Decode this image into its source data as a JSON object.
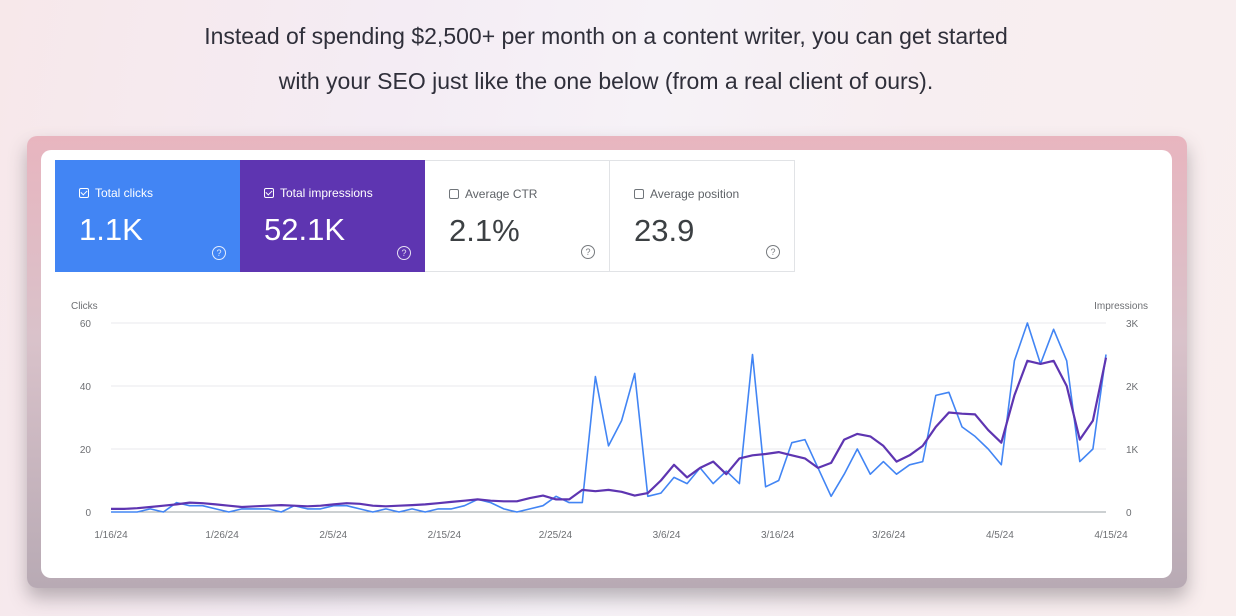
{
  "intro": {
    "line1": "Instead of spending $2,500+ per month on a content writer, you can get started",
    "line2": "with your SEO just like the one below (from a real client of ours)."
  },
  "metrics": [
    {
      "label": "Total clicks",
      "value": "1.1K",
      "checked": true,
      "color": "#4285f4"
    },
    {
      "label": "Total impressions",
      "value": "52.1K",
      "checked": true,
      "color": "#5e35b1"
    },
    {
      "label": "Average CTR",
      "value": "2.1%",
      "checked": false
    },
    {
      "label": "Average position",
      "value": "23.9",
      "checked": false
    }
  ],
  "chart_data": {
    "type": "line",
    "left_axis": {
      "label": "Clicks",
      "ticks": [
        "60",
        "40",
        "20",
        "0"
      ],
      "range": [
        0,
        60
      ]
    },
    "right_axis": {
      "label": "Impressions",
      "ticks": [
        "3K",
        "2K",
        "1K",
        "0"
      ],
      "range": [
        0,
        3000
      ]
    },
    "x_ticks": [
      "1/16/24",
      "1/26/24",
      "2/5/24",
      "2/15/24",
      "2/25/24",
      "3/6/24",
      "3/16/24",
      "3/26/24",
      "4/5/24",
      "4/15/24"
    ],
    "grid": true,
    "series": [
      {
        "name": "Clicks",
        "axis": "left",
        "color": "#4285f4",
        "values": [
          0,
          0,
          0,
          1,
          0,
          3,
          2,
          2,
          1,
          0,
          1,
          1,
          1,
          0,
          2,
          1,
          1,
          2,
          2,
          1,
          0,
          1,
          0,
          1,
          0,
          1,
          1,
          2,
          4,
          3,
          1,
          0,
          1,
          2,
          5,
          3,
          3,
          43,
          21,
          29,
          44,
          5,
          6,
          11,
          9,
          14,
          9,
          13,
          9,
          50,
          8,
          10,
          22,
          23,
          14,
          5,
          12,
          20,
          12,
          16,
          12,
          15,
          16,
          37,
          38,
          27,
          24,
          20,
          15,
          48,
          60,
          47,
          58,
          48,
          16,
          20,
          50
        ]
      },
      {
        "name": "Impressions",
        "axis": "right",
        "color": "#5e35b1",
        "values": [
          50,
          50,
          60,
          80,
          100,
          120,
          150,
          140,
          120,
          100,
          80,
          90,
          100,
          110,
          100,
          90,
          100,
          120,
          140,
          130,
          100,
          90,
          100,
          110,
          120,
          140,
          160,
          180,
          200,
          180,
          170,
          170,
          220,
          260,
          200,
          200,
          350,
          330,
          350,
          320,
          260,
          300,
          500,
          750,
          550,
          700,
          800,
          600,
          850,
          900,
          920,
          950,
          900,
          850,
          700,
          780,
          1150,
          1240,
          1200,
          1050,
          800,
          900,
          1050,
          1350,
          1580,
          1560,
          1550,
          1300,
          1100,
          1850,
          2400,
          2350,
          2400,
          2000,
          1150,
          1450,
          2450
        ]
      }
    ]
  }
}
